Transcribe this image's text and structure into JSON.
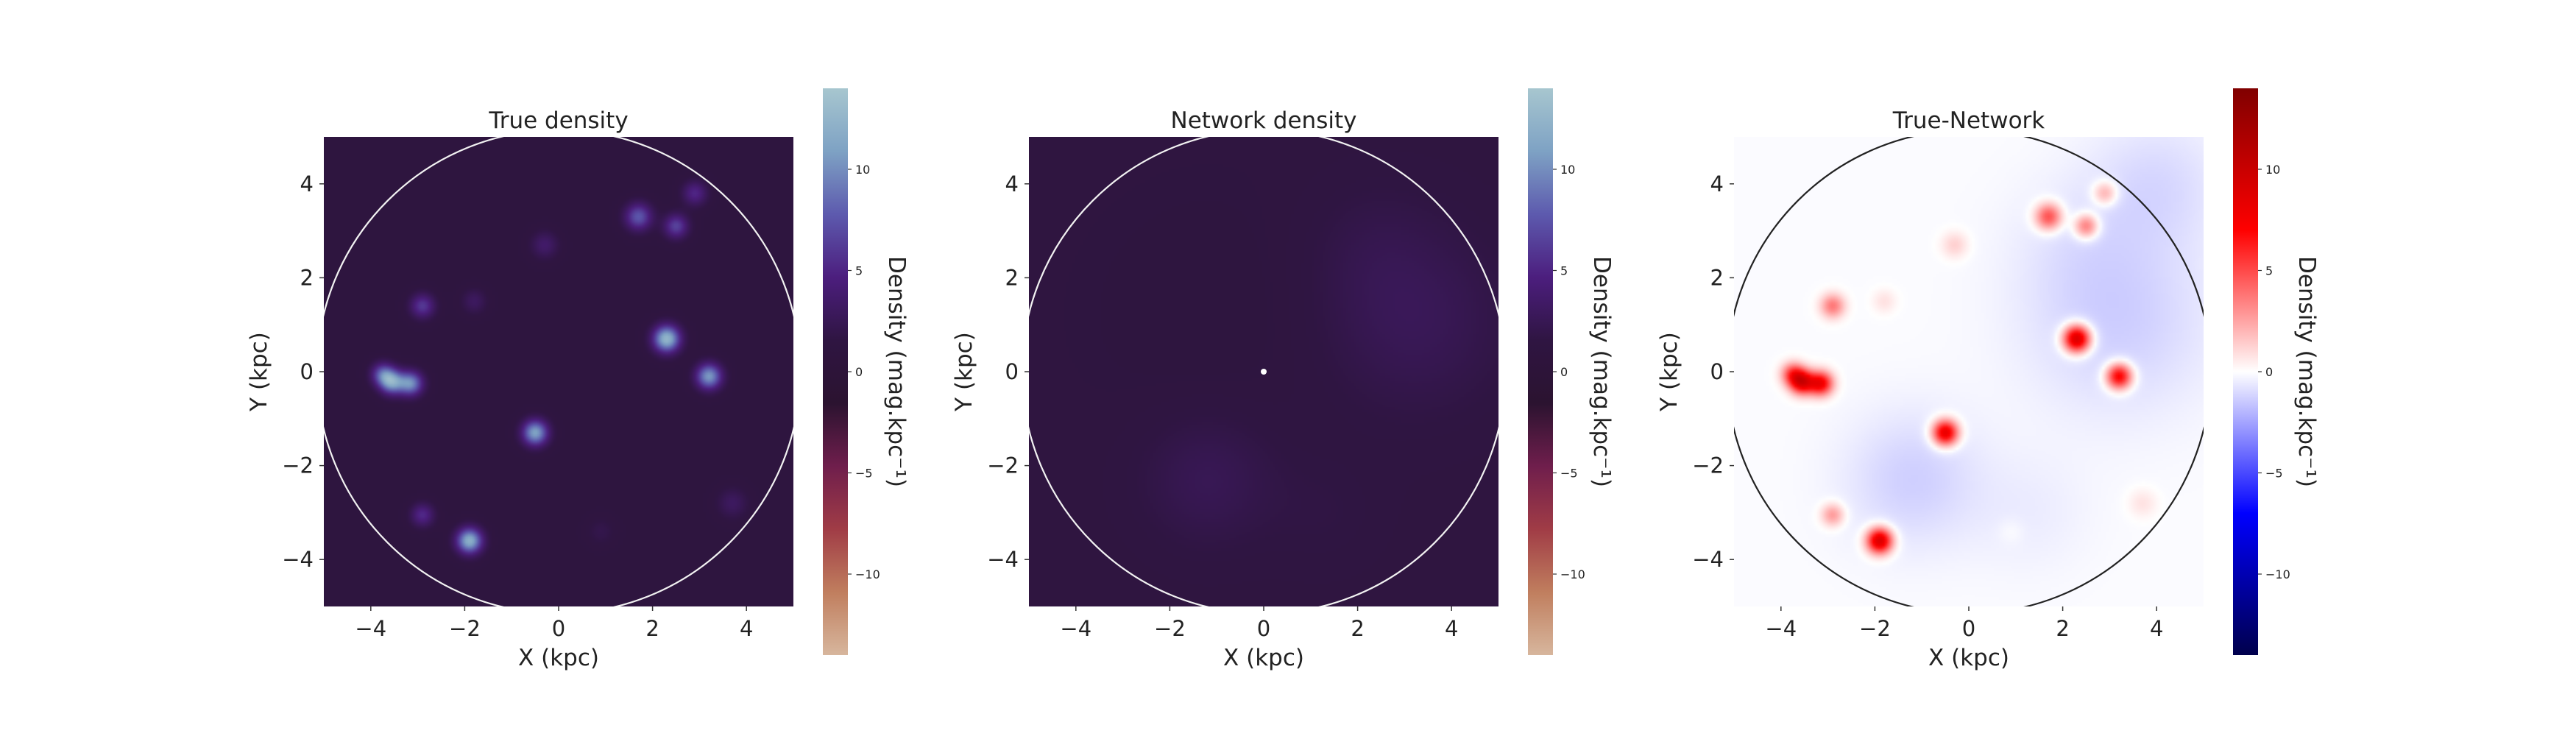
{
  "chart_data": [
    {
      "type": "heatmap",
      "title": "True density",
      "xlabel": "X (kpc)",
      "ylabel": "Y (kpc)",
      "xlim": [
        -5,
        5
      ],
      "ylim": [
        -5,
        5
      ],
      "xticks": [
        -4,
        -2,
        0,
        2,
        4
      ],
      "yticks": [
        -4,
        -2,
        0,
        2,
        4
      ],
      "grid": false,
      "colormap": "twilight_shifted",
      "colorbar": {
        "label": "Density (mag.kpc⁻¹)",
        "range": [
          -14,
          14
        ],
        "ticks": [
          -10,
          -5,
          0,
          5,
          10
        ],
        "stops": [
          "#d7b69d",
          "#c07e5e",
          "#a03c46",
          "#6f1e4c",
          "#2b1330",
          "#2f1542",
          "#4c1e7e",
          "#5d5aae",
          "#7ea2c4",
          "#a7c6cf"
        ]
      },
      "background_value": 1.1,
      "boundary_circle_radius_kpc": 5,
      "sources": [
        {
          "x": -3.55,
          "y": -0.22,
          "peak": 9.5,
          "sigma": 0.18
        },
        {
          "x": -3.15,
          "y": -0.25,
          "peak": 8.8,
          "sigma": 0.18
        },
        {
          "x": -3.75,
          "y": -0.05,
          "peak": 6.0,
          "sigma": 0.17
        },
        {
          "x": 2.3,
          "y": 0.7,
          "peak": 11.5,
          "sigma": 0.2
        },
        {
          "x": 3.2,
          "y": -0.1,
          "peak": 9.5,
          "sigma": 0.19
        },
        {
          "x": -0.5,
          "y": -1.3,
          "peak": 10.0,
          "sigma": 0.19
        },
        {
          "x": -1.9,
          "y": -3.6,
          "peak": 11.0,
          "sigma": 0.19
        },
        {
          "x": 1.7,
          "y": 3.3,
          "peak": 6.5,
          "sigma": 0.2
        },
        {
          "x": 2.5,
          "y": 3.1,
          "peak": 5.5,
          "sigma": 0.18
        },
        {
          "x": 2.9,
          "y": 3.8,
          "peak": 4.0,
          "sigma": 0.18
        },
        {
          "x": -2.9,
          "y": 1.4,
          "peak": 5.0,
          "sigma": 0.18
        },
        {
          "x": -1.8,
          "y": 1.5,
          "peak": 2.0,
          "sigma": 0.18
        },
        {
          "x": -0.3,
          "y": 2.7,
          "peak": 2.5,
          "sigma": 0.2
        },
        {
          "x": -2.9,
          "y": -3.05,
          "peak": 4.2,
          "sigma": 0.17
        },
        {
          "x": 3.7,
          "y": -2.8,
          "peak": 2.0,
          "sigma": 0.22
        },
        {
          "x": 0.9,
          "y": -3.4,
          "peak": 1.0,
          "sigma": 0.2
        }
      ]
    },
    {
      "type": "heatmap",
      "title": "Network density",
      "xlabel": "X (kpc)",
      "ylabel": "Y (kpc)",
      "xlim": [
        -5,
        5
      ],
      "ylim": [
        -5,
        5
      ],
      "xticks": [
        -4,
        -2,
        0,
        2,
        4
      ],
      "yticks": [
        -4,
        -2,
        0,
        2,
        4
      ],
      "grid": false,
      "colormap": "twilight_shifted",
      "colorbar": {
        "label": "Density (mag.kpc⁻¹)",
        "range": [
          -14,
          14
        ],
        "ticks": [
          -10,
          -5,
          0,
          5,
          10
        ],
        "stops": [
          "#d7b69d",
          "#c07e5e",
          "#a03c46",
          "#6f1e4c",
          "#2b1330",
          "#2f1542",
          "#4c1e7e",
          "#5d5aae",
          "#7ea2c4",
          "#a7c6cf"
        ]
      },
      "background_value": 1.2,
      "boundary_circle_radius_kpc": 5,
      "centre_marker": {
        "x": 0,
        "y": 0
      },
      "sources": [
        {
          "x": 3.2,
          "y": 1.1,
          "peak": 1.4,
          "sigma": 1.4
        },
        {
          "x": -1.2,
          "y": -2.3,
          "peak": 1.3,
          "sigma": 1.0
        },
        {
          "x": 1.3,
          "y": -3.0,
          "peak": 0.4,
          "sigma": 0.9
        },
        {
          "x": 2.3,
          "y": 2.7,
          "peak": 0.5,
          "sigma": 1.0
        },
        {
          "x": -1.0,
          "y": 1.2,
          "peak": -0.25,
          "sigma": 1.6
        }
      ]
    },
    {
      "type": "heatmap",
      "title": "True-Network",
      "xlabel": "X (kpc)",
      "ylabel": "Y (kpc)",
      "xlim": [
        -5,
        5
      ],
      "ylim": [
        -5,
        5
      ],
      "xticks": [
        -4,
        -2,
        0,
        2,
        4
      ],
      "yticks": [
        -4,
        -2,
        0,
        2,
        4
      ],
      "grid": false,
      "colormap": "seismic",
      "colorbar": {
        "label": "Density (mag.kpc⁻¹)",
        "range": [
          -14,
          14
        ],
        "ticks": [
          -10,
          -5,
          0,
          5,
          10
        ],
        "stops": [
          "#00004c",
          "#0000ff",
          "#ffffff",
          "#ff0000",
          "#800000"
        ]
      },
      "background_value": -0.1,
      "boundary_circle_radius_kpc": 5,
      "sources": [
        {
          "x": -3.55,
          "y": -0.22,
          "peak": 8.3,
          "sigma": 0.18
        },
        {
          "x": -3.15,
          "y": -0.25,
          "peak": 7.6,
          "sigma": 0.18
        },
        {
          "x": -3.75,
          "y": -0.05,
          "peak": 4.8,
          "sigma": 0.17
        },
        {
          "x": 2.3,
          "y": 0.7,
          "peak": 10.0,
          "sigma": 0.2
        },
        {
          "x": 3.2,
          "y": -0.1,
          "peak": 8.0,
          "sigma": 0.19
        },
        {
          "x": -0.5,
          "y": -1.3,
          "peak": 8.8,
          "sigma": 0.19
        },
        {
          "x": -1.9,
          "y": -3.6,
          "peak": 9.5,
          "sigma": 0.19
        },
        {
          "x": 1.7,
          "y": 3.3,
          "peak": 5.3,
          "sigma": 0.2
        },
        {
          "x": 2.5,
          "y": 3.1,
          "peak": 4.3,
          "sigma": 0.18
        },
        {
          "x": 2.9,
          "y": 3.8,
          "peak": 2.8,
          "sigma": 0.18
        },
        {
          "x": -2.9,
          "y": 1.4,
          "peak": 3.8,
          "sigma": 0.18
        },
        {
          "x": -1.8,
          "y": 1.5,
          "peak": 0.9,
          "sigma": 0.18
        },
        {
          "x": -0.3,
          "y": 2.7,
          "peak": 1.4,
          "sigma": 0.2
        },
        {
          "x": -2.9,
          "y": -3.05,
          "peak": 3.0,
          "sigma": 0.17
        },
        {
          "x": 3.7,
          "y": -2.8,
          "peak": 0.9,
          "sigma": 0.22
        },
        {
          "x": 0.9,
          "y": -3.4,
          "peak": 0.35,
          "sigma": 0.2
        },
        {
          "x": 3.2,
          "y": 1.1,
          "peak": -1.2,
          "sigma": 1.4
        },
        {
          "x": -1.2,
          "y": -2.3,
          "peak": -1.2,
          "sigma": 1.0
        },
        {
          "x": 1.3,
          "y": -3.0,
          "peak": -0.4,
          "sigma": 0.9
        },
        {
          "x": 2.3,
          "y": 2.7,
          "peak": -0.4,
          "sigma": 1.0
        },
        {
          "x": 4.0,
          "y": 4.0,
          "peak": -0.9,
          "sigma": 1.0
        }
      ]
    }
  ]
}
